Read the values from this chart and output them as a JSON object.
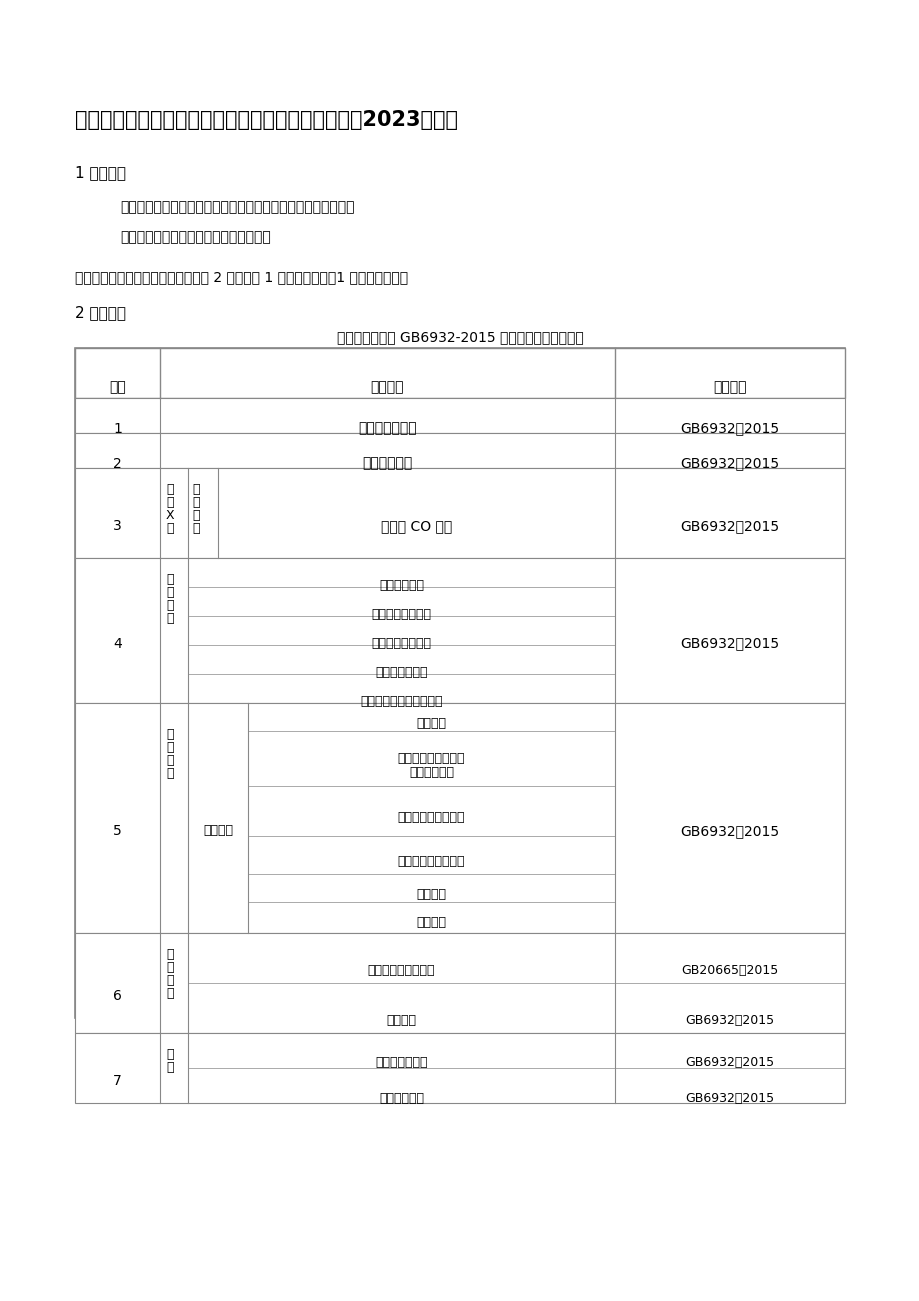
{
  "title": "浙江省家用燃气热水器产品质量监督抽查实施细则（2023年版）",
  "section1_title": "1 抽样方法",
  "section1_para1": "以随机抽样的方式在被抽样生产者、销售者的待销产品中抽取。",
  "section1_para2": "随机数一般可使用随机数表等方法产生。",
  "section1_note": "每批次家用燃气热水器产品抽取样品 2 台，其中 1 台为检验样品，1 台为备用样品。",
  "section2_title": "2 检验依据",
  "table_caption": "明示执行标准为 GB6932-2015 的家用燃气快速热水器",
  "table_headers": [
    "序号",
    "检验项目",
    "检验方法"
  ],
  "bg_color": "#ffffff",
  "text_color": "#000000",
  "border_color": "#888888",
  "title_fontsize": 15,
  "body_fontsize": 10,
  "table_fontsize": 10
}
